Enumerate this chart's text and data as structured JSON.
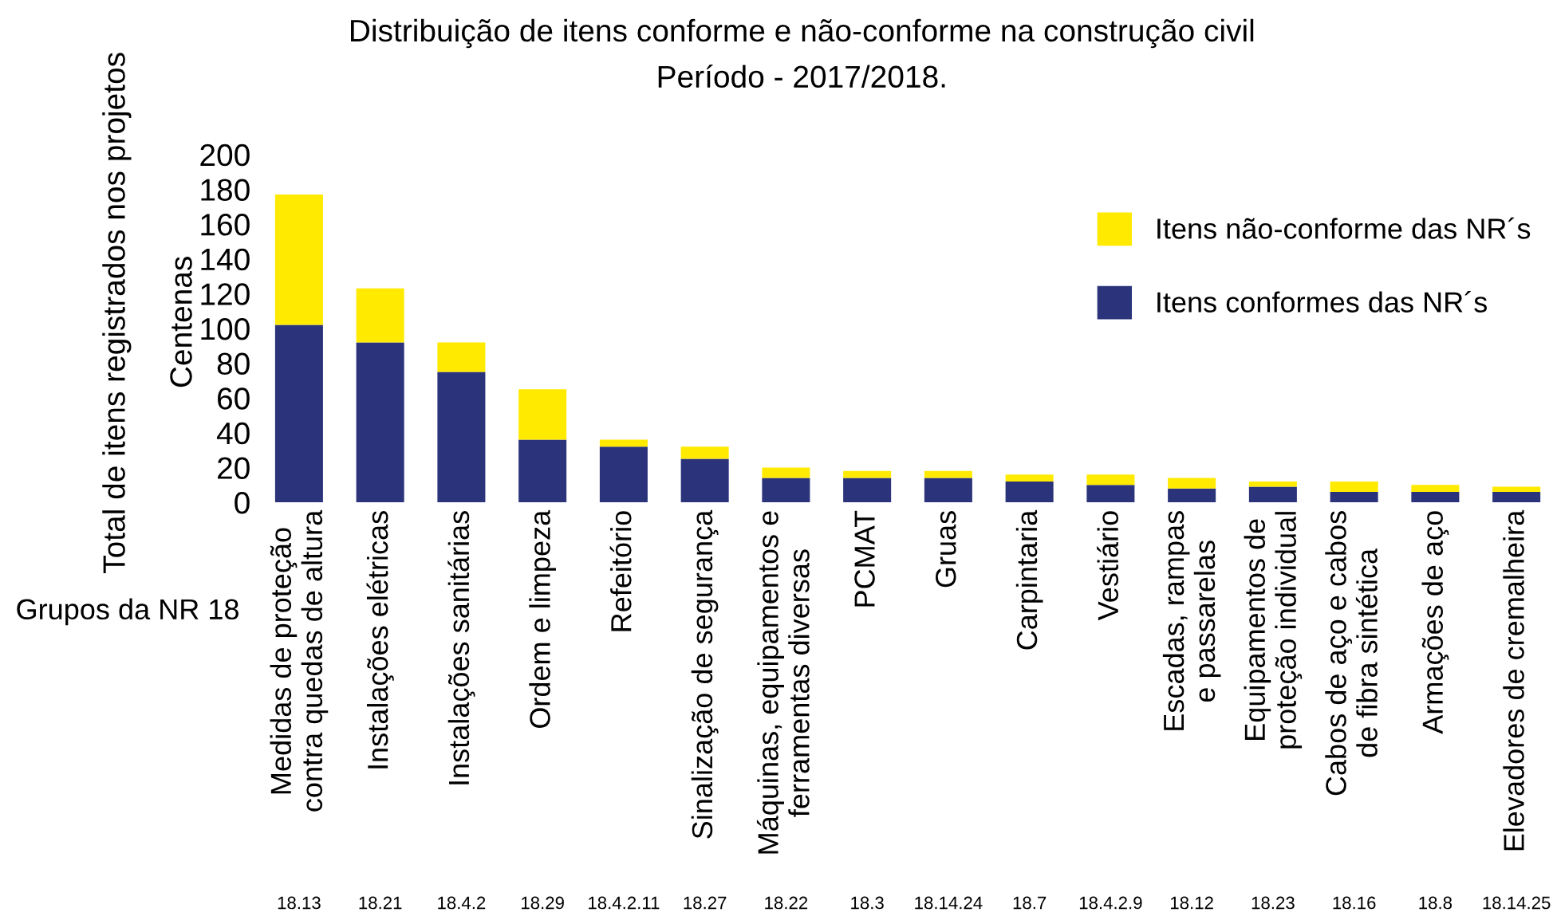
{
  "chart_data": {
    "type": "bar",
    "title": "Distribuição de itens conforme e não-conforme na construção civil",
    "subtitle": "Período - 2017/2018.",
    "ylabel": "Total de itens registrados nos projetos",
    "categories": [
      "Medidas de proteção\ncontra quedas de altura",
      "Instalações elétricas",
      "Instalações sanitárias",
      "Ordem e limpeza",
      "Refeitório",
      "Sinalização de segurança",
      "Máquinas, equipamentos e\nferramentas diversas",
      "PCMAT",
      "Gruas",
      "Carpintaria",
      "Vestiário",
      "Escadas, rampas\ne passarelas",
      "Equipamentos de\nproteção individual",
      "Cabos de aço e cabos\nde fibra sintética",
      "Armações de aço",
      "Elevadores de cremalheira"
    ],
    "stacked": true,
    "series": [
      {
        "name": "Itens conformes das NR´s",
        "color": "#2b347a",
        "values": [
          102,
          92,
          75,
          36,
          32,
          25,
          14,
          14,
          14,
          12,
          10,
          8,
          9,
          6,
          6,
          6
        ]
      },
      {
        "name": "Itens não-conforme das NR´s",
        "color": "#ffea00",
        "values": [
          75,
          31,
          17,
          29,
          4,
          7,
          6,
          4,
          4,
          4,
          6,
          6,
          3,
          6,
          4,
          3
        ]
      }
    ],
    "ylim": [
      0,
      200
    ],
    "yticks": [
      0,
      20,
      40,
      60,
      80,
      100,
      120,
      140,
      160,
      180,
      200
    ],
    "legend": "right",
    "grid": false,
    "annotations": [
      "Grupos da NR 18",
      "Centenas",
      "18.13",
      "18.21",
      "18.4.2",
      "18.29",
      "18.4.2.11",
      "18.27",
      "18.22",
      "18.3",
      "18.14.24",
      "18.7",
      "18.4.2.9",
      "18.12",
      "18.23",
      "18.16",
      "18.8",
      "18.14.25"
    ]
  }
}
